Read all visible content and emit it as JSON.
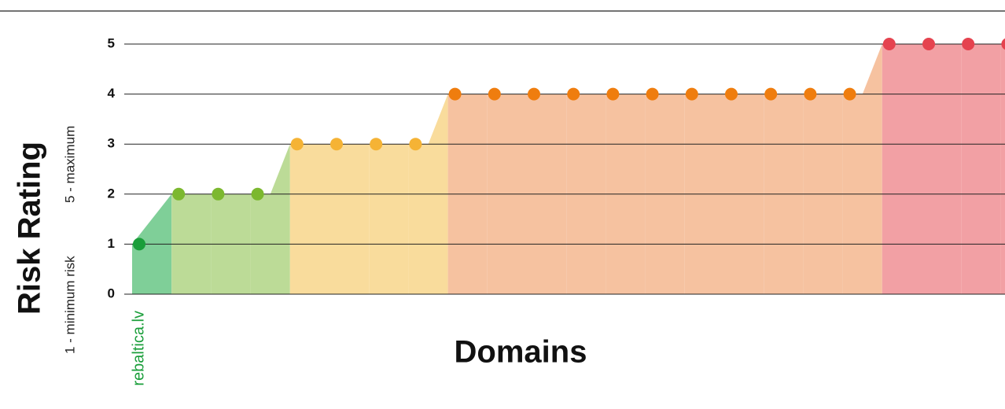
{
  "chart_data": {
    "type": "step-area-dot",
    "y_title": "Risk Rating",
    "y_subtitle_min": "1 - minimum risk",
    "y_subtitle_max": "5 - maximum",
    "x_title": "Domains",
    "categories": [
      "rebaltica.lv",
      null,
      null,
      null,
      null,
      null,
      null,
      null,
      null,
      null,
      null,
      null,
      null,
      null,
      null,
      null,
      null,
      null,
      null,
      null,
      null,
      null,
      null
    ],
    "values": [
      1,
      2,
      2,
      2,
      3,
      3,
      3,
      3,
      4,
      4,
      4,
      4,
      4,
      4,
      4,
      4,
      4,
      4,
      4,
      5,
      5,
      5,
      5
    ],
    "level_colors": [
      "#1a9e3a",
      "#7cb82f",
      "#f5b335",
      "#ef7d0e",
      "#e5434f"
    ],
    "level_area_colors": [
      "#7fcf98",
      "#bcdb97",
      "#f9dc9c",
      "#f6c2a0",
      "#f2a0a4"
    ],
    "category_label_color": "#1a9e3a",
    "ylim": [
      0,
      5
    ],
    "yticks": [
      0,
      1,
      2,
      3,
      4,
      5
    ],
    "grid": true
  }
}
